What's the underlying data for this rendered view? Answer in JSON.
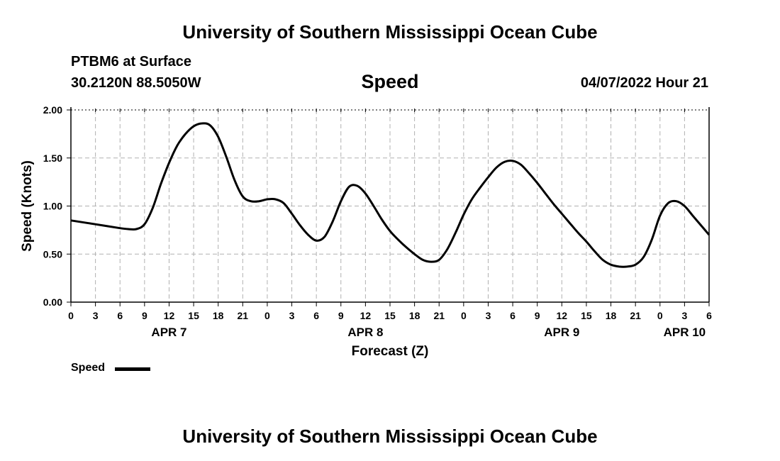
{
  "header": {
    "title": "University of Southern Mississippi Ocean Cube",
    "station": "PTBM6 at Surface",
    "coordinates": "30.2120N  88.5050W",
    "variable": "Speed",
    "datetime": "04/07/2022 Hour 21"
  },
  "footer": {
    "title": "University of Southern Mississippi Ocean Cube"
  },
  "legend": {
    "label": "Speed"
  },
  "chart_data": {
    "type": "line",
    "title": "Speed",
    "xlabel": "Forecast (Z)",
    "ylabel": "Speed (Knots)",
    "xlim": [
      0,
      78
    ],
    "ylim": [
      0,
      2.0
    ],
    "grid": true,
    "x_ticks": [
      0,
      3,
      6,
      9,
      12,
      15,
      18,
      21,
      24,
      27,
      30,
      33,
      36,
      39,
      42,
      45,
      48,
      51,
      54,
      57,
      60,
      63,
      66,
      69,
      72,
      75,
      78
    ],
    "x_tick_labels": [
      "0",
      "3",
      "6",
      "9",
      "12",
      "15",
      "18",
      "21",
      "0",
      "3",
      "6",
      "9",
      "12",
      "15",
      "18",
      "21",
      "0",
      "3",
      "6",
      "9",
      "12",
      "15",
      "18",
      "21",
      "0",
      "3",
      "6"
    ],
    "y_ticks": [
      0,
      0.5,
      1.0,
      1.5,
      2.0
    ],
    "y_tick_labels": [
      "0.00",
      "0.50",
      "1.00",
      "1.50",
      "2.00"
    ],
    "date_labels": [
      {
        "label": "APR 7",
        "x": 12
      },
      {
        "label": "APR 8",
        "x": 36
      },
      {
        "label": "APR 9",
        "x": 60
      },
      {
        "label": "APR 10",
        "x": 75
      }
    ],
    "series": [
      {
        "name": "Speed",
        "x": [
          0,
          3,
          6,
          7,
          8,
          9,
          10,
          11,
          12,
          13,
          14,
          15,
          16,
          17,
          18,
          19,
          20,
          21,
          22,
          23,
          24,
          25,
          26,
          27,
          28,
          29,
          30,
          31,
          32,
          33,
          34,
          35,
          36,
          37,
          38,
          39,
          40,
          41,
          42,
          43,
          44,
          45,
          46,
          47,
          48,
          49,
          50,
          51,
          52,
          53,
          54,
          55,
          56,
          57,
          58,
          59,
          60,
          61,
          62,
          63,
          64,
          65,
          66,
          67,
          68,
          69,
          70,
          71,
          72,
          73,
          74,
          75,
          76,
          77,
          78
        ],
        "values": [
          0.85,
          0.81,
          0.77,
          0.76,
          0.76,
          0.81,
          0.98,
          1.23,
          1.45,
          1.63,
          1.75,
          1.83,
          1.86,
          1.84,
          1.72,
          1.51,
          1.27,
          1.1,
          1.05,
          1.05,
          1.07,
          1.07,
          1.03,
          0.92,
          0.8,
          0.7,
          0.64,
          0.68,
          0.84,
          1.05,
          1.2,
          1.21,
          1.13,
          1.0,
          0.86,
          0.74,
          0.65,
          0.57,
          0.5,
          0.44,
          0.42,
          0.44,
          0.55,
          0.72,
          0.91,
          1.07,
          1.19,
          1.3,
          1.4,
          1.46,
          1.47,
          1.43,
          1.34,
          1.24,
          1.13,
          1.02,
          0.92,
          0.82,
          0.72,
          0.63,
          0.53,
          0.44,
          0.39,
          0.37,
          0.37,
          0.39,
          0.47,
          0.65,
          0.9,
          1.03,
          1.05,
          1.0,
          0.9,
          0.8,
          0.7
        ]
      }
    ]
  }
}
